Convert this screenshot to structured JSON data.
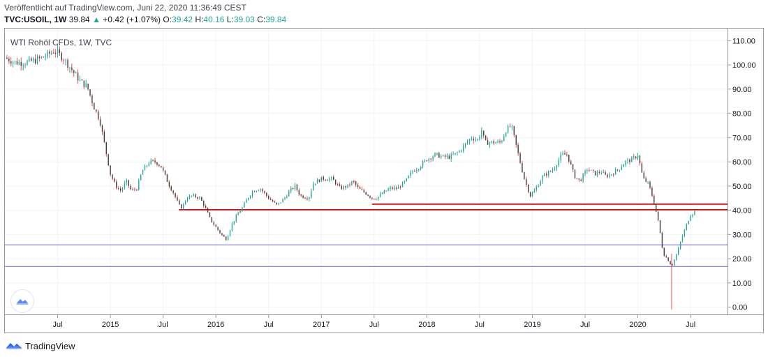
{
  "header": {
    "published": "Veröffentlicht auf TradingView.com, Juni 22, 2020 11:36:49 CEST",
    "symbol": "TVC:USOIL, 1W",
    "last": "39.84",
    "change": "+0.42 (+1.07%)",
    "o_label": "O:",
    "o_value": "39.42",
    "h_label": "H:",
    "h_value": "40.16",
    "l_label": "L:",
    "l_value": "39.03",
    "c_label": "C:",
    "c_value": "39.84"
  },
  "chart_legend": "WTI Rohöl CFDs, 1W, TVC",
  "branding": {
    "name": "TradingView"
  },
  "colors": {
    "up": "#26a69a",
    "down": "#ef5350",
    "body": "#3d3d3d",
    "resistance": "#e00000",
    "support": "#3c3cd8",
    "grid": "#f0f3fa"
  },
  "icons": {
    "logo": "tradingview-logo-icon",
    "bubble": "tradingview-cloud-icon",
    "up_arrow": "triangle-up-icon"
  },
  "chart_data": {
    "type": "candlestick",
    "interval": "1W",
    "y_ticks": [
      "110.00",
      "100.00",
      "90.00",
      "80.00",
      "70.00",
      "60.00",
      "50.00",
      "40.00",
      "30.00",
      "20.00",
      "10.00",
      "0.00"
    ],
    "ylim": [
      -3,
      115
    ],
    "x_ticks": [
      {
        "label": "Jul",
        "t": 2014.5
      },
      {
        "label": "2015",
        "t": 2015.0
      },
      {
        "label": "Jul",
        "t": 2015.5
      },
      {
        "label": "2016",
        "t": 2016.0
      },
      {
        "label": "Jul",
        "t": 2016.5
      },
      {
        "label": "2017",
        "t": 2017.0
      },
      {
        "label": "Jul",
        "t": 2017.5
      },
      {
        "label": "2018",
        "t": 2018.0
      },
      {
        "label": "Jul",
        "t": 2018.5
      },
      {
        "label": "2019",
        "t": 2019.0
      },
      {
        "label": "Jul",
        "t": 2019.5
      },
      {
        "label": "2020",
        "t": 2020.0
      },
      {
        "label": "Jul",
        "t": 2020.5
      }
    ],
    "xlim": [
      2014.0,
      2020.85
    ],
    "grid": true,
    "price_path": [
      [
        2014.0,
        103
      ],
      [
        2014.1,
        101
      ],
      [
        2014.2,
        101
      ],
      [
        2014.3,
        102
      ],
      [
        2014.4,
        104
      ],
      [
        2014.47,
        106
      ],
      [
        2014.55,
        103
      ],
      [
        2014.65,
        97
      ],
      [
        2014.72,
        93
      ],
      [
        2014.78,
        91
      ],
      [
        2014.85,
        82
      ],
      [
        2014.9,
        77
      ],
      [
        2014.95,
        66
      ],
      [
        2015.0,
        55
      ],
      [
        2015.05,
        50
      ],
      [
        2015.1,
        48
      ],
      [
        2015.15,
        52
      ],
      [
        2015.2,
        48
      ],
      [
        2015.25,
        49
      ],
      [
        2015.3,
        56
      ],
      [
        2015.37,
        60
      ],
      [
        2015.43,
        60
      ],
      [
        2015.48,
        58
      ],
      [
        2015.55,
        51
      ],
      [
        2015.6,
        47
      ],
      [
        2015.65,
        42
      ],
      [
        2015.68,
        41
      ],
      [
        2015.72,
        45
      ],
      [
        2015.78,
        46
      ],
      [
        2015.85,
        45
      ],
      [
        2015.9,
        41
      ],
      [
        2015.95,
        36
      ],
      [
        2016.0,
        33
      ],
      [
        2016.05,
        30
      ],
      [
        2016.1,
        28
      ],
      [
        2016.15,
        34
      ],
      [
        2016.2,
        38
      ],
      [
        2016.25,
        41
      ],
      [
        2016.3,
        45
      ],
      [
        2016.35,
        48
      ],
      [
        2016.42,
        49
      ],
      [
        2016.5,
        45
      ],
      [
        2016.58,
        42
      ],
      [
        2016.65,
        45
      ],
      [
        2016.7,
        48
      ],
      [
        2016.75,
        50
      ],
      [
        2016.8,
        46
      ],
      [
        2016.88,
        45
      ],
      [
        2016.92,
        51
      ],
      [
        2017.0,
        53
      ],
      [
        2017.1,
        53
      ],
      [
        2017.18,
        49
      ],
      [
        2017.25,
        50
      ],
      [
        2017.3,
        52
      ],
      [
        2017.35,
        49
      ],
      [
        2017.42,
        47
      ],
      [
        2017.48,
        45
      ],
      [
        2017.52,
        45
      ],
      [
        2017.58,
        47
      ],
      [
        2017.65,
        49
      ],
      [
        2017.72,
        49
      ],
      [
        2017.8,
        52
      ],
      [
        2017.86,
        56
      ],
      [
        2017.93,
        58
      ],
      [
        2018.0,
        61
      ],
      [
        2018.08,
        63
      ],
      [
        2018.15,
        62
      ],
      [
        2018.22,
        62
      ],
      [
        2018.3,
        64
      ],
      [
        2018.36,
        67
      ],
      [
        2018.42,
        70
      ],
      [
        2018.48,
        69
      ],
      [
        2018.52,
        73
      ],
      [
        2018.55,
        68
      ],
      [
        2018.62,
        68
      ],
      [
        2018.7,
        68
      ],
      [
        2018.75,
        73
      ],
      [
        2018.8,
        75
      ],
      [
        2018.85,
        66
      ],
      [
        2018.9,
        57
      ],
      [
        2018.93,
        52
      ],
      [
        2018.98,
        46
      ],
      [
        2019.02,
        48
      ],
      [
        2019.1,
        54
      ],
      [
        2019.2,
        57
      ],
      [
        2019.28,
        63
      ],
      [
        2019.33,
        63
      ],
      [
        2019.4,
        54
      ],
      [
        2019.45,
        52
      ],
      [
        2019.52,
        57
      ],
      [
        2019.6,
        55
      ],
      [
        2019.65,
        56
      ],
      [
        2019.7,
        54
      ],
      [
        2019.75,
        55
      ],
      [
        2019.82,
        57
      ],
      [
        2019.88,
        60
      ],
      [
        2019.95,
        61
      ],
      [
        2020.0,
        63
      ],
      [
        2020.05,
        53
      ],
      [
        2020.1,
        51
      ],
      [
        2020.15,
        44
      ],
      [
        2020.2,
        34
      ],
      [
        2020.24,
        22
      ],
      [
        2020.28,
        20
      ],
      [
        2020.32,
        17
      ],
      [
        2020.37,
        22
      ],
      [
        2020.42,
        29
      ],
      [
        2020.47,
        35
      ],
      [
        2020.5,
        38
      ],
      [
        2020.55,
        39.84
      ]
    ],
    "special_wicks": [
      {
        "t": 2020.32,
        "low": -1,
        "high": 22,
        "color": "down"
      }
    ],
    "resistance_lines": [
      {
        "t_start": 2015.65,
        "t_end": 2020.55,
        "y": 40.2
      },
      {
        "t_start": 2017.48,
        "t_end": 2020.55,
        "y": 42.5
      }
    ],
    "support_lines": [
      {
        "y": 25.7
      },
      {
        "y": 16.8
      }
    ]
  }
}
